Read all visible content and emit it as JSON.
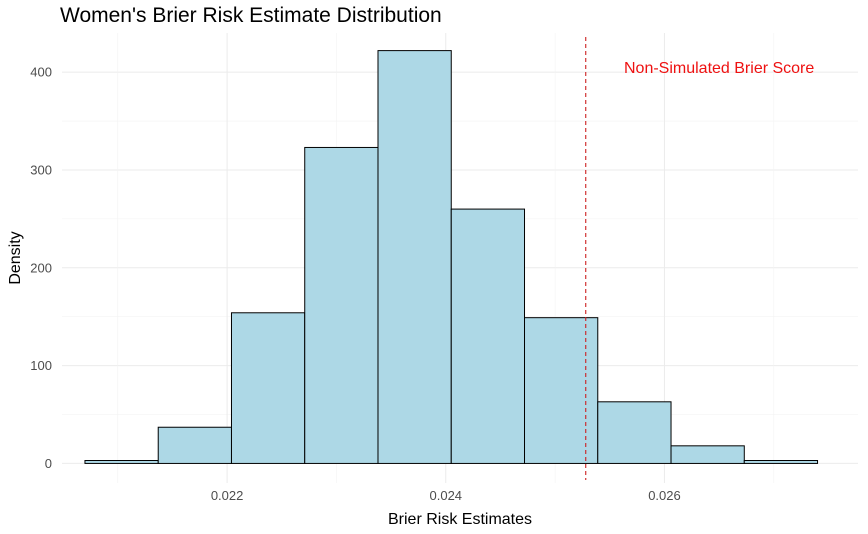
{
  "chart_data": {
    "type": "bar",
    "title": "Women's Brier Risk Estimate Distribution",
    "xlabel": "Brier Risk Estimates",
    "ylabel": "Density",
    "xlim": [
      0.02049,
      0.02777
    ],
    "ylim": [
      -20,
      440
    ],
    "x_ticks": [
      0.022,
      0.024,
      0.026
    ],
    "x_tick_labels": [
      "0.022",
      "0.024",
      "0.026"
    ],
    "y_ticks": [
      0,
      100,
      200,
      300,
      400
    ],
    "y_tick_labels": [
      "0",
      "100",
      "200",
      "300",
      "400"
    ],
    "grid": true,
    "bins": [
      {
        "x0": 0.0207,
        "x1": 0.02137,
        "value": 3
      },
      {
        "x0": 0.02137,
        "x1": 0.02204,
        "value": 37
      },
      {
        "x0": 0.02204,
        "x1": 0.02271,
        "value": 154
      },
      {
        "x0": 0.02271,
        "x1": 0.02338,
        "value": 323
      },
      {
        "x0": 0.02338,
        "x1": 0.02405,
        "value": 422
      },
      {
        "x0": 0.02405,
        "x1": 0.02472,
        "value": 260
      },
      {
        "x0": 0.02472,
        "x1": 0.02539,
        "value": 149
      },
      {
        "x0": 0.02539,
        "x1": 0.02606,
        "value": 63
      },
      {
        "x0": 0.02606,
        "x1": 0.02673,
        "value": 18
      },
      {
        "x0": 0.02673,
        "x1": 0.0274,
        "value": 3
      }
    ],
    "bar_fill": "#add8e6",
    "bar_stroke": "#000000",
    "reference_line": {
      "x": 0.02528,
      "color": "#cc2020",
      "style": "dashed"
    },
    "annotation": {
      "text": "Non-Simulated Brier Score",
      "x": 0.0265,
      "y": 399,
      "color": "#ee1111"
    }
  }
}
